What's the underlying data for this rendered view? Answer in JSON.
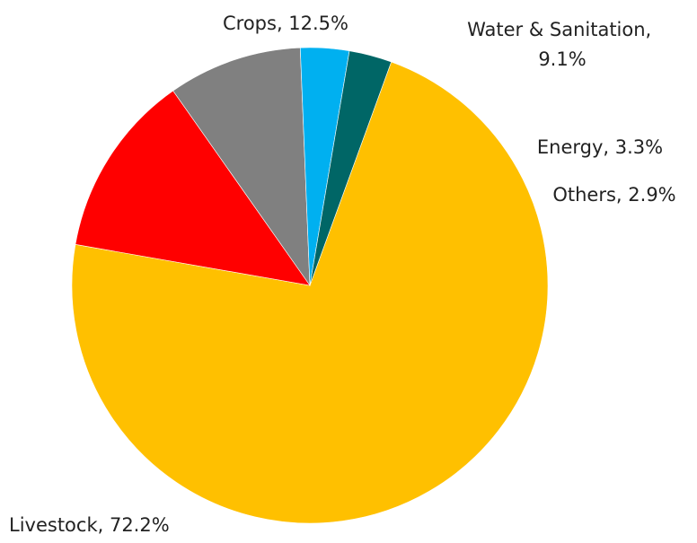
{
  "chart_data": {
    "type": "pie",
    "title": "",
    "slices": [
      {
        "category": "Livestock",
        "value": 72.2,
        "label": "Livestock, 72.2%",
        "color": "#FFC000"
      },
      {
        "category": "Crops",
        "value": 12.5,
        "label": "Crops, 12.5%",
        "color": "#FF0000"
      },
      {
        "category": "Water & Sanitation",
        "value": 9.1,
        "label": "Water & Sanitation, 9.1%",
        "color": "#808080"
      },
      {
        "category": "Energy",
        "value": 3.3,
        "label": "Energy, 3.3%",
        "color": "#00B0F0"
      },
      {
        "category": "Others",
        "value": 2.9,
        "label": "Others, 2.9%",
        "color": "#006666"
      }
    ],
    "legend": "none",
    "data_labels": "outside"
  }
}
